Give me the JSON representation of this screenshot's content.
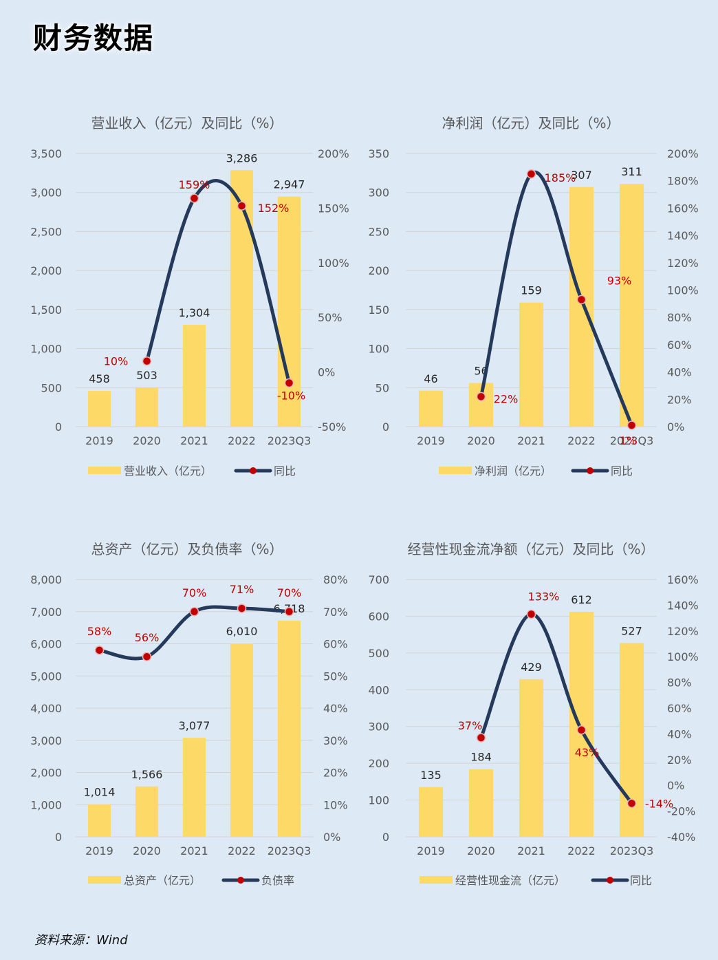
{
  "page": {
    "title": "财务数据",
    "source": "资料来源：Wind"
  },
  "chart_data": [
    {
      "type": "bar",
      "title": "营业收入（亿元）及同比（%）",
      "categories": [
        "2019",
        "2020",
        "2021",
        "2022",
        "2023Q3"
      ],
      "series": [
        {
          "name": "营业收入（亿元）",
          "type": "bar",
          "axis": "left",
          "values": [
            458,
            503,
            1304,
            3286,
            2947
          ],
          "labels": [
            "458",
            "503",
            "1,304",
            "3,286",
            "2,947"
          ]
        },
        {
          "name": "同比",
          "type": "line",
          "axis": "right",
          "values": [
            null,
            10,
            159,
            152,
            -10
          ],
          "labels": [
            "",
            "10%",
            "159%",
            "152%",
            "-10%"
          ]
        }
      ],
      "left_axis": {
        "min": 0,
        "max": 3500,
        "step": 500,
        "ticks": [
          "0",
          "500",
          "1,000",
          "1,500",
          "2,000",
          "2,500",
          "3,000",
          "3,500"
        ]
      },
      "right_axis": {
        "min": -50,
        "max": 200,
        "step": 50,
        "ticks": [
          "-50%",
          "0%",
          "50%",
          "100%",
          "150%",
          "200%"
        ]
      },
      "grid": true,
      "legend": "bottom"
    },
    {
      "type": "bar",
      "title": "净利润（亿元）及同比（%）",
      "categories": [
        "2019",
        "2020",
        "2021",
        "2022",
        "2023Q3"
      ],
      "series": [
        {
          "name": "净利润（亿元）",
          "type": "bar",
          "axis": "left",
          "values": [
            46,
            56,
            159,
            307,
            311
          ],
          "labels": [
            "46",
            "56",
            "159",
            "307",
            "311"
          ]
        },
        {
          "name": "同比",
          "type": "line",
          "axis": "right",
          "values": [
            null,
            22,
            185,
            93,
            1
          ],
          "labels": [
            "",
            "22%",
            "185%",
            "93%",
            "1%"
          ]
        }
      ],
      "left_axis": {
        "min": 0,
        "max": 350,
        "step": 50,
        "ticks": [
          "0",
          "50",
          "100",
          "150",
          "200",
          "250",
          "300",
          "350"
        ]
      },
      "right_axis": {
        "min": 0,
        "max": 200,
        "step": 20,
        "ticks": [
          "0%",
          "20%",
          "40%",
          "60%",
          "80%",
          "100%",
          "120%",
          "140%",
          "160%",
          "180%",
          "200%"
        ]
      },
      "grid": true,
      "legend": "bottom"
    },
    {
      "type": "bar",
      "title": "总资产（亿元）及负债率（%）",
      "categories": [
        "2019",
        "2020",
        "2021",
        "2022",
        "2023Q3"
      ],
      "series": [
        {
          "name": "总资产（亿元）",
          "type": "bar",
          "axis": "left",
          "values": [
            1014,
            1566,
            3077,
            6010,
            6718
          ],
          "labels": [
            "1,014",
            "1,566",
            "3,077",
            "6,010",
            "6,718"
          ]
        },
        {
          "name": "负债率",
          "type": "line",
          "axis": "right",
          "values": [
            58,
            56,
            70,
            71,
            70
          ],
          "labels": [
            "58%",
            "56%",
            "70%",
            "71%",
            "70%"
          ]
        }
      ],
      "left_axis": {
        "min": 0,
        "max": 8000,
        "step": 1000,
        "ticks": [
          "0",
          "1,000",
          "2,000",
          "3,000",
          "4,000",
          "5,000",
          "6,000",
          "7,000",
          "8,000"
        ]
      },
      "right_axis": {
        "min": 0,
        "max": 80,
        "step": 10,
        "ticks": [
          "0%",
          "10%",
          "20%",
          "30%",
          "40%",
          "50%",
          "60%",
          "70%",
          "80%"
        ]
      },
      "grid": true,
      "legend": "bottom"
    },
    {
      "type": "bar",
      "title": "经营性现金流净额（亿元）及同比（%）",
      "categories": [
        "2019",
        "2020",
        "2021",
        "2022",
        "2023Q3"
      ],
      "series": [
        {
          "name": "经营性现金流（亿元）",
          "type": "bar",
          "axis": "left",
          "values": [
            135,
            184,
            429,
            612,
            527
          ],
          "labels": [
            "135",
            "184",
            "429",
            "612",
            "527"
          ]
        },
        {
          "name": "同比",
          "type": "line",
          "axis": "right",
          "values": [
            null,
            37,
            133,
            43,
            -14
          ],
          "labels": [
            "",
            "37%",
            "133%",
            "43%",
            "-14%"
          ]
        }
      ],
      "left_axis": {
        "min": 0,
        "max": 700,
        "step": 100,
        "ticks": [
          "0",
          "100",
          "200",
          "300",
          "400",
          "500",
          "600",
          "700"
        ]
      },
      "right_axis": {
        "min": -40,
        "max": 160,
        "step": 20,
        "ticks": [
          "-40%",
          "-20%",
          "0%",
          "20%",
          "40%",
          "60%",
          "80%",
          "100%",
          "120%",
          "140%",
          "160%"
        ]
      },
      "grid": true,
      "legend": "bottom"
    }
  ],
  "colors": {
    "bar": "#fdd967",
    "line": "#253a5a",
    "marker": "#c00000",
    "label_line": "#c00000",
    "grid": "#d3d3d3",
    "text": "#595959",
    "background": "#dde9f5"
  }
}
